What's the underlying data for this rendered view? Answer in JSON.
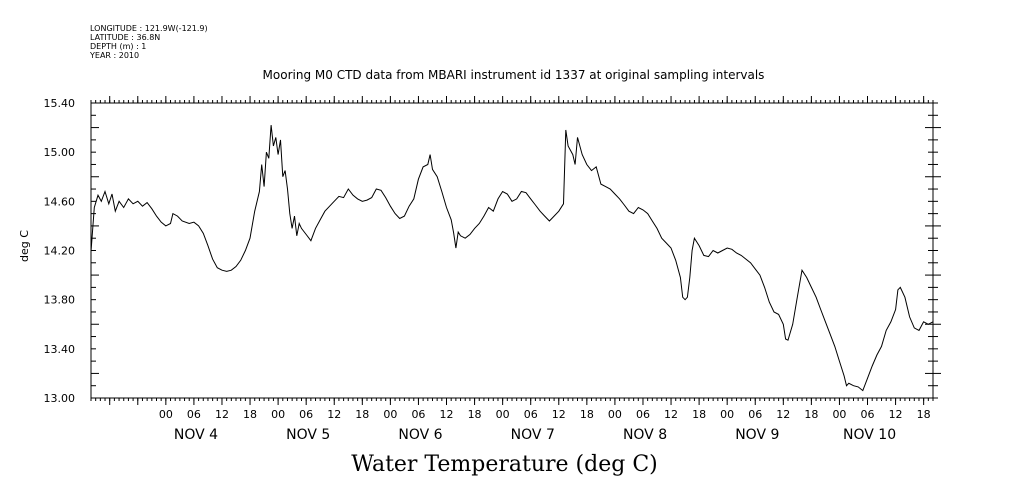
{
  "metadata": {
    "longitude": "LONGITUDE : 121.9W(-121.9)",
    "latitude": "LATITUDE : 36.8N",
    "depth": "DEPTH (m) : 1",
    "year": "YEAR : 2010"
  },
  "chart_data": {
    "type": "line",
    "title": "Mooring M0 CTD data from MBARI instrument id 1337 at original sampling intervals",
    "xlabel": "Water Temperature (deg C)",
    "ylabel": "deg C",
    "ylim": [
      13.0,
      15.4
    ],
    "yticks": [
      "13.00",
      "13.40",
      "13.80",
      "14.20",
      "14.60",
      "15.00",
      "15.40"
    ],
    "xlim_hours": [
      -16,
      164
    ],
    "hour_ticks": [
      "00",
      "06",
      "12",
      "18",
      "00",
      "06",
      "12",
      "18",
      "00",
      "06",
      "12",
      "18",
      "00",
      "06",
      "12",
      "18",
      "00",
      "06",
      "12",
      "18",
      "00",
      "06",
      "12",
      "18",
      "00",
      "06",
      "12",
      "18"
    ],
    "day_labels": [
      "NOV  4",
      "NOV  5",
      "NOV  6",
      "NOV  7",
      "NOV  8",
      "NOV  9",
      "NOV 10"
    ],
    "grid": false,
    "series": [
      {
        "color": "#000000",
        "points": [
          [
            -16,
            14.19
          ],
          [
            -15.3,
            14.55
          ],
          [
            -14.5,
            14.65
          ],
          [
            -13.8,
            14.6
          ],
          [
            -13,
            14.68
          ],
          [
            -12.2,
            14.58
          ],
          [
            -11.5,
            14.66
          ],
          [
            -10.8,
            14.52
          ],
          [
            -10,
            14.6
          ],
          [
            -9,
            14.55
          ],
          [
            -8,
            14.62
          ],
          [
            -7,
            14.58
          ],
          [
            -6,
            14.6
          ],
          [
            -5,
            14.56
          ],
          [
            -4,
            14.59
          ],
          [
            -3,
            14.54
          ],
          [
            -2,
            14.48
          ],
          [
            -1,
            14.43
          ],
          [
            0,
            14.4
          ],
          [
            1,
            14.42
          ],
          [
            1.5,
            14.5
          ],
          [
            2.5,
            14.48
          ],
          [
            3.5,
            14.44
          ],
          [
            5,
            14.42
          ],
          [
            6,
            14.43
          ],
          [
            7,
            14.4
          ],
          [
            8,
            14.34
          ],
          [
            9,
            14.24
          ],
          [
            10,
            14.13
          ],
          [
            11,
            14.06
          ],
          [
            12,
            14.04
          ],
          [
            13,
            14.03
          ],
          [
            14,
            14.04
          ],
          [
            15,
            14.07
          ],
          [
            16,
            14.12
          ],
          [
            17,
            14.2
          ],
          [
            18,
            14.3
          ],
          [
            19,
            14.52
          ],
          [
            20,
            14.68
          ],
          [
            20.5,
            14.9
          ],
          [
            21,
            14.72
          ],
          [
            21.5,
            15.0
          ],
          [
            22,
            14.95
          ],
          [
            22.5,
            15.22
          ],
          [
            23,
            15.05
          ],
          [
            23.5,
            15.12
          ],
          [
            24,
            14.98
          ],
          [
            24.5,
            15.1
          ],
          [
            25,
            14.8
          ],
          [
            25.5,
            14.85
          ],
          [
            26,
            14.7
          ],
          [
            26.5,
            14.5
          ],
          [
            27,
            14.38
          ],
          [
            27.5,
            14.48
          ],
          [
            28,
            14.32
          ],
          [
            28.5,
            14.42
          ],
          [
            29,
            14.38
          ],
          [
            30,
            14.33
          ],
          [
            31,
            14.28
          ],
          [
            32,
            14.38
          ],
          [
            33,
            14.45
          ],
          [
            34,
            14.52
          ],
          [
            35,
            14.56
          ],
          [
            36,
            14.6
          ],
          [
            37,
            14.64
          ],
          [
            38,
            14.63
          ],
          [
            39,
            14.7
          ],
          [
            40,
            14.65
          ],
          [
            41,
            14.62
          ],
          [
            42,
            14.6
          ],
          [
            43,
            14.61
          ],
          [
            44,
            14.63
          ],
          [
            45,
            14.7
          ],
          [
            46,
            14.69
          ],
          [
            47,
            14.63
          ],
          [
            48,
            14.56
          ],
          [
            49,
            14.5
          ],
          [
            50,
            14.46
          ],
          [
            51,
            14.48
          ],
          [
            52,
            14.56
          ],
          [
            53,
            14.62
          ],
          [
            54,
            14.78
          ],
          [
            55,
            14.88
          ],
          [
            56,
            14.9
          ],
          [
            56.5,
            14.98
          ],
          [
            57,
            14.86
          ],
          [
            58,
            14.8
          ],
          [
            59,
            14.68
          ],
          [
            60,
            14.55
          ],
          [
            61,
            14.45
          ],
          [
            61.5,
            14.35
          ],
          [
            62,
            14.22
          ],
          [
            62.5,
            14.35
          ],
          [
            63,
            14.32
          ],
          [
            64,
            14.3
          ],
          [
            65,
            14.33
          ],
          [
            66,
            14.38
          ],
          [
            67,
            14.42
          ],
          [
            68,
            14.48
          ],
          [
            69,
            14.55
          ],
          [
            70,
            14.52
          ],
          [
            71,
            14.62
          ],
          [
            72,
            14.68
          ],
          [
            73,
            14.66
          ],
          [
            74,
            14.6
          ],
          [
            75,
            14.62
          ],
          [
            76,
            14.68
          ],
          [
            77,
            14.67
          ],
          [
            78,
            14.62
          ],
          [
            79,
            14.57
          ],
          [
            80,
            14.52
          ],
          [
            81,
            14.48
          ],
          [
            82,
            14.44
          ],
          [
            83,
            14.48
          ],
          [
            84,
            14.52
          ],
          [
            85,
            14.58
          ],
          [
            85.5,
            15.18
          ],
          [
            86,
            15.05
          ],
          [
            87,
            14.98
          ],
          [
            87.5,
            14.9
          ],
          [
            88,
            15.12
          ],
          [
            89,
            14.98
          ],
          [
            90,
            14.9
          ],
          [
            91,
            14.85
          ],
          [
            92,
            14.88
          ],
          [
            93,
            14.74
          ],
          [
            94,
            14.72
          ],
          [
            95,
            14.7
          ],
          [
            96,
            14.66
          ],
          [
            97,
            14.62
          ],
          [
            98,
            14.57
          ],
          [
            99,
            14.52
          ],
          [
            100,
            14.5
          ],
          [
            101,
            14.55
          ],
          [
            102,
            14.53
          ],
          [
            103,
            14.5
          ],
          [
            104,
            14.44
          ],
          [
            105,
            14.38
          ],
          [
            106,
            14.3
          ],
          [
            107,
            14.26
          ],
          [
            108,
            14.22
          ],
          [
            109,
            14.12
          ],
          [
            110,
            13.98
          ],
          [
            110.5,
            13.82
          ],
          [
            111,
            13.8
          ],
          [
            111.5,
            13.82
          ],
          [
            112,
            13.98
          ],
          [
            112.5,
            14.2
          ],
          [
            113,
            14.3
          ],
          [
            114,
            14.24
          ],
          [
            115,
            14.16
          ],
          [
            116,
            14.15
          ],
          [
            117,
            14.2
          ],
          [
            118,
            14.18
          ],
          [
            119,
            14.2
          ],
          [
            120,
            14.22
          ],
          [
            121,
            14.21
          ],
          [
            122,
            14.18
          ],
          [
            123,
            14.16
          ],
          [
            124,
            14.13
          ],
          [
            125,
            14.1
          ],
          [
            126,
            14.05
          ],
          [
            127,
            14.0
          ],
          [
            128,
            13.9
          ],
          [
            129,
            13.78
          ],
          [
            130,
            13.7
          ],
          [
            131,
            13.68
          ],
          [
            132,
            13.6
          ],
          [
            132.5,
            13.48
          ],
          [
            133,
            13.47
          ],
          [
            134,
            13.6
          ],
          [
            135,
            13.82
          ],
          [
            136,
            14.04
          ],
          [
            137,
            13.98
          ],
          [
            138,
            13.9
          ],
          [
            139,
            13.82
          ],
          [
            140,
            13.72
          ],
          [
            141,
            13.62
          ],
          [
            142,
            13.52
          ],
          [
            143,
            13.42
          ],
          [
            144,
            13.3
          ],
          [
            145,
            13.18
          ],
          [
            145.5,
            13.1
          ],
          [
            146,
            13.12
          ],
          [
            147,
            13.1
          ],
          [
            148,
            13.09
          ],
          [
            149,
            13.06
          ],
          [
            150,
            13.16
          ],
          [
            151,
            13.26
          ],
          [
            152,
            13.35
          ],
          [
            153,
            13.42
          ],
          [
            154,
            13.55
          ],
          [
            155,
            13.62
          ],
          [
            156,
            13.72
          ],
          [
            156.5,
            13.88
          ],
          [
            157,
            13.9
          ],
          [
            158,
            13.82
          ],
          [
            159,
            13.66
          ],
          [
            160,
            13.57
          ],
          [
            161,
            13.55
          ],
          [
            162,
            13.62
          ],
          [
            163,
            13.6
          ],
          [
            164,
            13.62
          ]
        ]
      }
    ]
  }
}
